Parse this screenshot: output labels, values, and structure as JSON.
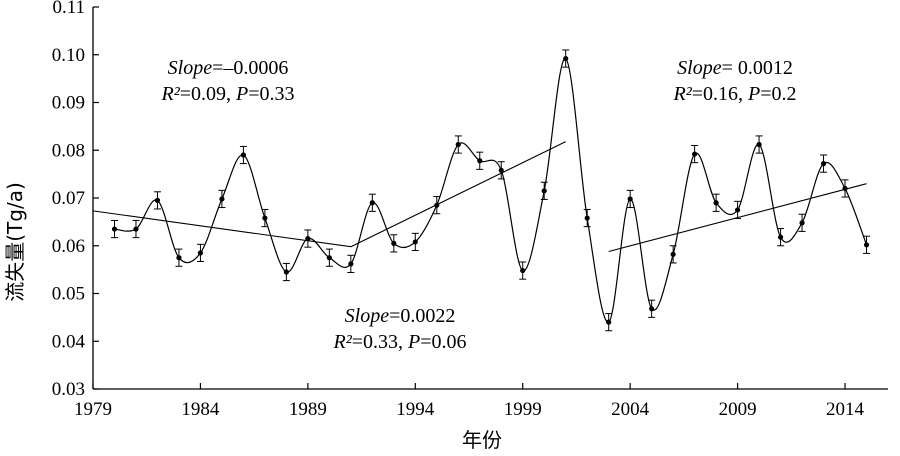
{
  "chart_data": {
    "type": "line",
    "title": "",
    "xlabel": "年份",
    "ylabel": "流失量(Tg/a)",
    "xlim": [
      1979,
      2016
    ],
    "ylim": [
      0.03,
      0.11
    ],
    "x_ticks": [
      "1979",
      "1984",
      "1989",
      "1994",
      "1999",
      "2004",
      "2009",
      "2014"
    ],
    "y_ticks": [
      "0.03",
      "0.04",
      "0.05",
      "0.06",
      "0.07",
      "0.08",
      "0.09",
      "0.10",
      "0.11"
    ],
    "grid": false,
    "legend": "none",
    "series": [
      {
        "x": [
          1980,
          1981,
          1982,
          1983,
          1984,
          1985,
          1986,
          1987,
          1988,
          1989,
          1990,
          1991,
          1992,
          1993,
          1994,
          1995,
          1996,
          1997,
          1998,
          1999,
          2000,
          2001,
          2002,
          2003,
          2004,
          2005,
          2006,
          2007,
          2008,
          2009,
          2010,
          2011,
          2012,
          2013,
          2014,
          2015
        ],
        "y": [
          0.0635,
          0.0635,
          0.0695,
          0.0575,
          0.0585,
          0.0698,
          0.079,
          0.0658,
          0.0545,
          0.0615,
          0.0575,
          0.0562,
          0.069,
          0.0605,
          0.0608,
          0.0685,
          0.0812,
          0.0778,
          0.0758,
          0.0548,
          0.0715,
          0.0992,
          0.0658,
          0.044,
          0.0698,
          0.0468,
          0.0582,
          0.0792,
          0.069,
          0.0675,
          0.0812,
          0.0618,
          0.0648,
          0.0772,
          0.072,
          0.0602
        ],
        "error": [
          0.0018,
          0.0018,
          0.0018,
          0.0018,
          0.0018,
          0.0018,
          0.0018,
          0.0018,
          0.0018,
          0.0018,
          0.0018,
          0.0018,
          0.0018,
          0.0018,
          0.0018,
          0.0018,
          0.0018,
          0.0018,
          0.0018,
          0.0018,
          0.0018,
          0.0018,
          0.0018,
          0.0018,
          0.0018,
          0.0018,
          0.0018,
          0.0018,
          0.0018,
          0.0018,
          0.0018,
          0.0018,
          0.0018,
          0.0018,
          0.0018,
          0.0018
        ]
      }
    ],
    "trendlines": [
      {
        "x": [
          1979,
          1991
        ],
        "y": [
          0.0673,
          0.0598
        ]
      },
      {
        "x": [
          1991,
          2001
        ],
        "y": [
          0.0598,
          0.0818
        ]
      },
      {
        "x": [
          2003,
          2015
        ],
        "y": [
          0.0588,
          0.073
        ]
      }
    ],
    "annotations": [
      {
        "slope_label": "Slope",
        "slope_value": "=–0.0006",
        "r2_label": "R²",
        "r2_value": "=0.09, ",
        "p_label": "P",
        "p_value": "=0.33"
      },
      {
        "slope_label": "Slope",
        "slope_value": "=0.0022",
        "r2_label": "R²",
        "r2_value": "=0.33, ",
        "p_label": "P",
        "p_value": "=0.06"
      },
      {
        "slope_label": "Slope",
        "slope_value": "= 0.0012",
        "r2_label": "R²",
        "r2_value": "=0.16, ",
        "p_label": "P",
        "p_value": "=0.2"
      }
    ]
  }
}
